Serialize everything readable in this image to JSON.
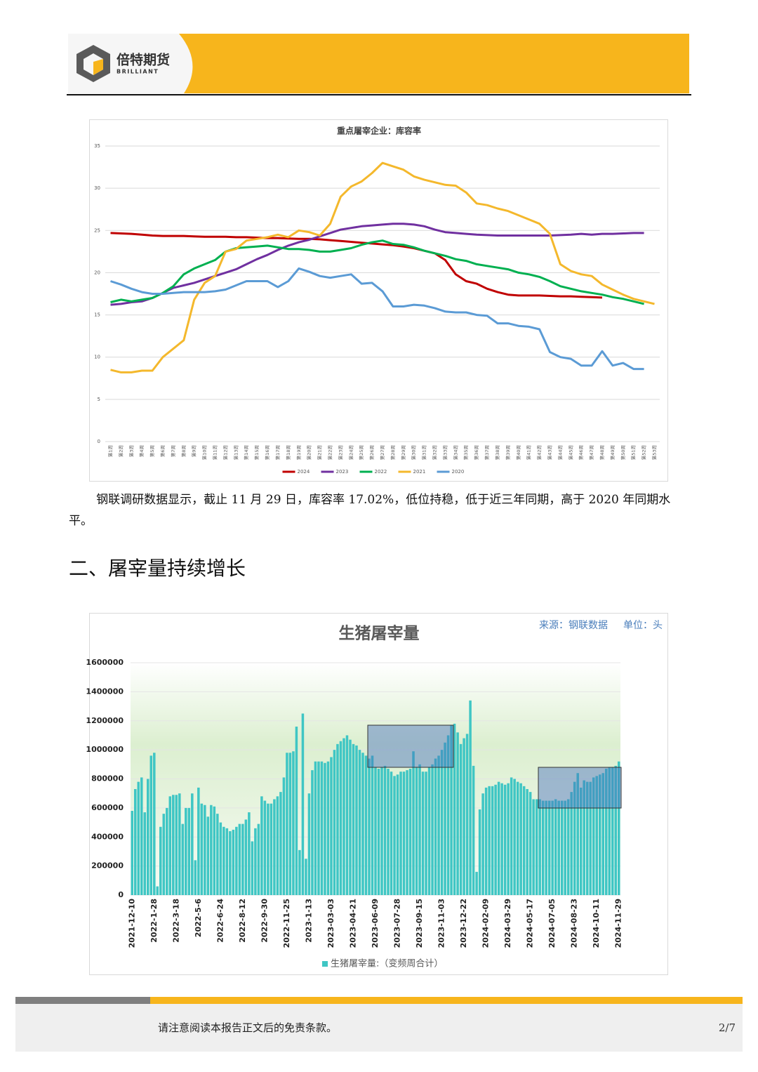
{
  "header": {
    "brand": "倍特期货",
    "brand_en": "BRILLIANT"
  },
  "chart_data": [
    {
      "type": "line",
      "title": "重点屠宰企业：库容率",
      "categories": [
        "第1周",
        "第2周",
        "第3周",
        "第4周",
        "第5周",
        "第6周",
        "第7周",
        "第8周",
        "第9周",
        "第10周",
        "第11周",
        "第12周",
        "第13周",
        "第14周",
        "第15周",
        "第16周",
        "第17周",
        "第18周",
        "第19周",
        "第20周",
        "第21周",
        "第22周",
        "第23周",
        "第24周",
        "第25周",
        "第26周",
        "第27周",
        "第28周",
        "第29周",
        "第30周",
        "第31周",
        "第32周",
        "第33周",
        "第34周",
        "第35周",
        "第36周",
        "第37周",
        "第38周",
        "第39周",
        "第40周",
        "第41周",
        "第42周",
        "第43周",
        "第44周",
        "第45周",
        "第46周",
        "第47周",
        "第48周",
        "第49周",
        "第50周",
        "第51周",
        "第52周",
        "第53周"
      ],
      "ylim": [
        0,
        35
      ],
      "yticks": [
        0,
        5,
        10,
        15,
        20,
        25,
        30,
        35
      ],
      "grid": true,
      "series": [
        {
          "name": "2024",
          "color": "#c00000",
          "values": [
            24.7,
            24.65,
            24.6,
            24.5,
            24.4,
            24.35,
            24.35,
            24.35,
            24.3,
            24.25,
            24.25,
            24.25,
            24.2,
            24.2,
            24.15,
            24.1,
            24.1,
            24.05,
            24.0,
            24.0,
            23.95,
            23.85,
            23.75,
            23.65,
            23.55,
            23.45,
            23.35,
            23.25,
            23.1,
            22.9,
            22.6,
            22.3,
            21.5,
            19.8,
            19.0,
            18.7,
            18.1,
            17.7,
            17.4,
            17.3,
            17.3,
            17.3,
            17.25,
            17.2,
            17.2,
            17.15,
            17.1,
            17.05,
            null,
            null,
            null,
            null,
            null
          ]
        },
        {
          "name": "2023",
          "color": "#7030a0",
          "values": [
            16.2,
            16.3,
            16.5,
            16.6,
            17.0,
            17.6,
            18.2,
            18.5,
            18.8,
            19.2,
            19.6,
            20.0,
            20.4,
            21.0,
            21.6,
            22.1,
            22.7,
            23.2,
            23.6,
            23.9,
            24.3,
            24.7,
            25.1,
            25.3,
            25.5,
            25.6,
            25.7,
            25.8,
            25.8,
            25.7,
            25.5,
            25.1,
            24.8,
            24.7,
            24.6,
            24.5,
            24.45,
            24.4,
            24.4,
            24.4,
            24.4,
            24.4,
            24.4,
            24.45,
            24.5,
            24.6,
            24.5,
            24.6,
            24.6,
            24.65,
            24.7,
            24.7,
            null
          ]
        },
        {
          "name": "2022",
          "color": "#00b050",
          "values": [
            16.5,
            16.8,
            16.6,
            16.8,
            17.0,
            17.6,
            18.4,
            19.8,
            20.5,
            21.0,
            21.5,
            22.5,
            22.9,
            23.0,
            23.1,
            23.2,
            23.0,
            22.8,
            22.8,
            22.7,
            22.5,
            22.5,
            22.7,
            22.9,
            23.3,
            23.6,
            23.8,
            23.4,
            23.3,
            23.0,
            22.6,
            22.3,
            22.0,
            21.6,
            21.4,
            21.0,
            20.8,
            20.6,
            20.4,
            20.0,
            19.8,
            19.5,
            19.0,
            18.4,
            18.1,
            17.8,
            17.6,
            17.4,
            17.1,
            16.9,
            16.6,
            16.3,
            null
          ]
        },
        {
          "name": "2021",
          "color": "#f4b82c",
          "values": [
            8.5,
            8.2,
            8.2,
            8.4,
            8.4,
            10.0,
            11.0,
            12.0,
            16.8,
            18.8,
            19.6,
            22.5,
            22.8,
            23.8,
            24.0,
            24.2,
            24.5,
            24.2,
            25.0,
            24.8,
            24.4,
            25.8,
            29.0,
            30.2,
            30.8,
            31.8,
            33.0,
            32.6,
            32.2,
            31.4,
            31.0,
            30.7,
            30.4,
            30.3,
            29.5,
            28.2,
            28.0,
            27.6,
            27.3,
            26.8,
            26.3,
            25.8,
            24.6,
            21.0,
            20.2,
            19.8,
            19.6,
            18.6,
            18.0,
            17.4,
            16.9,
            16.6,
            16.3
          ]
        },
        {
          "name": "2020",
          "color": "#5b9bd5",
          "values": [
            19.0,
            18.6,
            18.1,
            17.7,
            17.5,
            17.5,
            17.6,
            17.7,
            17.7,
            17.7,
            17.8,
            18.0,
            18.5,
            19.0,
            19.0,
            19.0,
            18.3,
            19.0,
            20.5,
            20.1,
            19.6,
            19.4,
            19.6,
            19.8,
            18.7,
            18.8,
            17.8,
            16.0,
            16.0,
            16.2,
            16.1,
            15.8,
            15.4,
            15.3,
            15.3,
            15.0,
            14.9,
            14.0,
            14.0,
            13.7,
            13.6,
            13.3,
            10.6,
            10.0,
            9.8,
            9.0,
            9.0,
            10.7,
            9.0,
            9.3,
            8.6,
            8.6,
            null
          ]
        }
      ]
    },
    {
      "type": "bar",
      "title": "生猪屠宰量",
      "source": "来源：钢联数据",
      "unit": "单位：头",
      "categories": [
        "2021-12-10",
        null,
        null,
        null,
        null,
        null,
        null,
        "2022-1-28",
        null,
        null,
        null,
        null,
        null,
        null,
        "2022-3-18",
        null,
        null,
        null,
        null,
        null,
        null,
        "2022-5-6",
        null,
        null,
        null,
        null,
        null,
        null,
        "2022-6-24",
        null,
        null,
        null,
        null,
        null,
        null,
        "2022-8-12",
        null,
        null,
        null,
        null,
        null,
        null,
        "2022-9-30",
        null,
        null,
        null,
        null,
        null,
        null,
        "2022-11-25",
        null,
        null,
        null,
        null,
        null,
        null,
        "2023-1-13",
        null,
        null,
        null,
        null,
        null,
        null,
        "2023-03-03",
        null,
        null,
        null,
        null,
        null,
        null,
        "2023-04-21",
        null,
        null,
        null,
        null,
        null,
        null,
        "2023-06-09",
        null,
        null,
        null,
        null,
        null,
        null,
        "2023-07-28",
        null,
        null,
        null,
        null,
        null,
        null,
        "2023-09-15",
        null,
        null,
        null,
        null,
        null,
        null,
        "2023-11-03",
        null,
        null,
        null,
        null,
        null,
        null,
        "2023-12-22",
        null,
        null,
        null,
        null,
        null,
        null,
        "2024-02-09",
        null,
        null,
        null,
        null,
        null,
        null,
        "2024-03-29",
        null,
        null,
        null,
        null,
        null,
        null,
        "2024-05-17",
        null,
        null,
        null,
        null,
        null,
        null,
        "2024-07-05",
        null,
        null,
        null,
        null,
        null,
        null,
        "2024-08-23",
        null,
        null,
        null,
        null,
        null,
        null,
        "2024-10-11",
        null,
        null,
        null,
        null,
        null,
        null,
        "2024-11-29"
      ],
      "ylim": [
        0,
        1600000
      ],
      "yticks": [
        0,
        200000,
        400000,
        600000,
        800000,
        1000000,
        1200000,
        1400000,
        1600000
      ],
      "grid": true,
      "series": [
        {
          "name": "生猪屠宰量:（变频周合计）",
          "color": "#3fc6c4",
          "values": [
            580000,
            730000,
            780000,
            810000,
            570000,
            800000,
            960000,
            980000,
            60000,
            470000,
            560000,
            600000,
            680000,
            690000,
            690000,
            700000,
            490000,
            600000,
            600000,
            700000,
            240000,
            740000,
            630000,
            620000,
            540000,
            620000,
            610000,
            560000,
            500000,
            470000,
            460000,
            440000,
            450000,
            470000,
            490000,
            490000,
            520000,
            570000,
            370000,
            460000,
            490000,
            680000,
            650000,
            630000,
            630000,
            660000,
            680000,
            710000,
            810000,
            980000,
            980000,
            990000,
            1160000,
            310000,
            1250000,
            250000,
            700000,
            860000,
            920000,
            920000,
            920000,
            910000,
            920000,
            950000,
            1000000,
            1040000,
            1060000,
            1080000,
            1100000,
            1070000,
            1040000,
            1030000,
            1000000,
            980000,
            960000,
            940000,
            960000,
            880000,
            870000,
            880000,
            890000,
            870000,
            850000,
            820000,
            830000,
            850000,
            850000,
            860000,
            870000,
            990000,
            880000,
            900000,
            850000,
            850000,
            880000,
            900000,
            940000,
            960000,
            1000000,
            1050000,
            1100000,
            1170000,
            1180000,
            1120000,
            1040000,
            1080000,
            1110000,
            1340000,
            890000,
            160000,
            590000,
            700000,
            740000,
            750000,
            750000,
            760000,
            780000,
            770000,
            760000,
            770000,
            810000,
            800000,
            780000,
            770000,
            750000,
            730000,
            710000,
            660000,
            660000,
            660000,
            650000,
            650000,
            650000,
            650000,
            660000,
            650000,
            650000,
            650000,
            660000,
            710000,
            780000,
            840000,
            740000,
            790000,
            780000,
            780000,
            810000,
            820000,
            830000,
            840000,
            870000,
            880000,
            880000,
            890000,
            920000
          ]
        }
      ]
    }
  ],
  "paragraph": "钢联调研数据显示，截止 11 月 29 日，库容率 17.02%，低位持稳，低于近三年同期，高于 2020 年同期水平。",
  "section_title": "二、屠宰量持续增长",
  "footer": {
    "disclaimer": "请注意阅读本报告正文后的免责条款。",
    "page": "2/7"
  }
}
